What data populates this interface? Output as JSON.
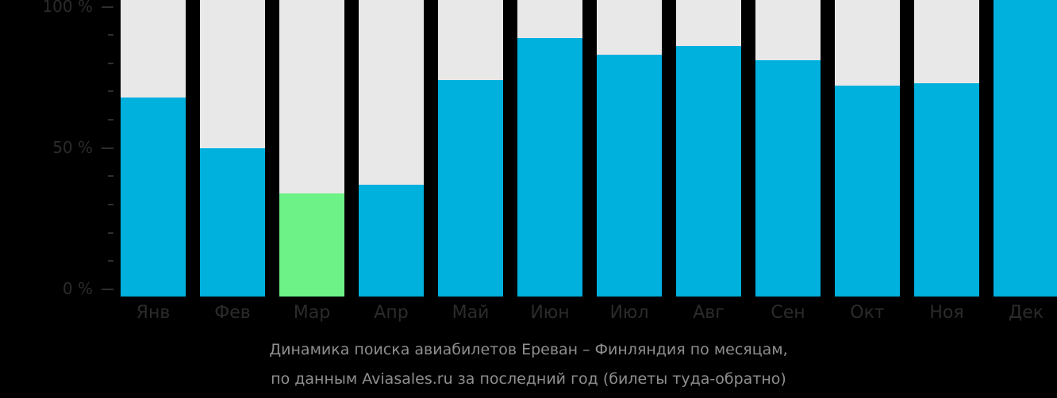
{
  "chart_data": {
    "type": "bar",
    "title": "Динамика поиска авиабилетов Ереван – Финляндия по месяцам,",
    "subtitle": "по данным Aviasales.ru за последний год (билеты туда-обратно)",
    "xlabel": "",
    "ylabel": "",
    "ylim": [
      0,
      100
    ],
    "y_ticks": [
      "0 %",
      "50 %",
      "100 %"
    ],
    "grid": false,
    "categories": [
      "Янв",
      "Фев",
      "Мар",
      "Апр",
      "Май",
      "Июн",
      "Июл",
      "Авг",
      "Сен",
      "Окт",
      "Ноя",
      "Дек"
    ],
    "values": [
      68,
      50,
      34,
      37,
      74,
      89,
      83,
      86,
      81,
      72,
      73,
      100
    ],
    "highlight_index": 2,
    "colors": {
      "bar": "#00b0dd",
      "highlight": "#6cf286",
      "background_bar": "#e8e8e8",
      "background": "#000000"
    }
  },
  "axis": {
    "labels": [
      {
        "text": "100 %",
        "value": 100
      },
      {
        "text": "50 %",
        "value": 50
      },
      {
        "text": "0 %",
        "value": 0
      }
    ]
  },
  "caption": {
    "line1": "Динамика поиска авиабилетов Ереван – Финляндия по месяцам,",
    "line2": "по данным Aviasales.ru за последний год (билеты туда-обратно)"
  }
}
